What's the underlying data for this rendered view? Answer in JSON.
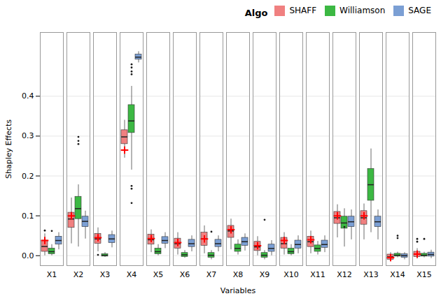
{
  "chart_data": {
    "type": "box",
    "xlabel": "Variables",
    "ylabel": "Shapley Effects",
    "categories": [
      "X1",
      "X2",
      "X3",
      "X4",
      "X5",
      "X6",
      "X7",
      "X8",
      "X9",
      "X10",
      "X11",
      "X12",
      "X13",
      "X14",
      "X15"
    ],
    "ylim": [
      -0.025,
      0.56
    ],
    "yticks": [
      {
        "value": 0.0,
        "label": "0.0"
      },
      0.1,
      0.2,
      0.3,
      0.4
    ],
    "grid": true,
    "legend": "upper right",
    "legend_title": "Algo",
    "mean_color": "#FF0000",
    "outlier_color": "#1a1a1a",
    "series": [
      {
        "name": "SHAFF",
        "color": "#F08080",
        "q1": [
          0.01,
          0.07,
          0.03,
          0.28,
          0.028,
          0.018,
          0.025,
          0.045,
          0.012,
          0.018,
          0.022,
          0.08,
          0.078,
          -0.01,
          -0.003
        ],
        "median": [
          0.023,
          0.092,
          0.042,
          0.298,
          0.04,
          0.03,
          0.042,
          0.062,
          0.022,
          0.03,
          0.035,
          0.095,
          0.095,
          -0.003,
          0.004
        ],
        "q3": [
          0.038,
          0.108,
          0.055,
          0.315,
          0.053,
          0.043,
          0.058,
          0.075,
          0.035,
          0.045,
          0.048,
          0.11,
          0.112,
          0.003,
          0.01
        ],
        "whislo": [
          0.0,
          0.03,
          0.01,
          0.245,
          0.008,
          0.002,
          0.005,
          0.015,
          0.0,
          0.002,
          0.005,
          0.045,
          0.04,
          -0.015,
          -0.008
        ],
        "whishi": [
          0.055,
          0.145,
          0.07,
          0.34,
          0.065,
          0.058,
          0.075,
          0.092,
          0.048,
          0.058,
          0.062,
          0.128,
          0.13,
          0.008,
          0.018
        ],
        "mean": [
          0.038,
          0.1,
          0.045,
          0.265,
          0.043,
          0.033,
          0.042,
          0.065,
          0.025,
          0.038,
          0.04,
          0.1,
          0.1,
          -0.005,
          0.004
        ],
        "fliers": [
          [
            0.063
          ],
          [],
          [
            0.002
          ],
          [],
          [],
          [],
          [],
          [],
          [],
          [],
          [],
          [],
          [],
          [],
          [
            0.035,
            0.042
          ]
        ]
      },
      {
        "name": "Williamson",
        "color": "#3CB843",
        "q1": [
          0.004,
          0.092,
          -0.002,
          0.308,
          0.004,
          -0.003,
          -0.005,
          0.01,
          -0.005,
          0.004,
          0.01,
          0.068,
          0.138,
          -0.002,
          -0.002
        ],
        "median": [
          0.01,
          0.118,
          0.001,
          0.338,
          0.01,
          0.002,
          0.001,
          0.018,
          0.001,
          0.01,
          0.018,
          0.082,
          0.178,
          0.001,
          0.001
        ],
        "q3": [
          0.018,
          0.148,
          0.004,
          0.378,
          0.018,
          0.007,
          0.007,
          0.028,
          0.007,
          0.018,
          0.026,
          0.098,
          0.218,
          0.005,
          0.005
        ],
        "whislo": [
          0.0,
          0.022,
          -0.004,
          0.215,
          0.0,
          -0.006,
          -0.01,
          0.002,
          -0.01,
          0.0,
          0.002,
          0.022,
          0.058,
          -0.005,
          -0.005
        ],
        "whishi": [
          0.028,
          0.178,
          0.008,
          0.425,
          0.028,
          0.013,
          0.013,
          0.04,
          0.013,
          0.028,
          0.036,
          0.118,
          0.268,
          0.009,
          0.009
        ],
        "fliers": [
          [
            0.062
          ],
          [
            0.28,
            0.288,
            0.298
          ],
          [],
          [
            0.455,
            0.462,
            0.472,
            0.48,
            0.175,
            0.168,
            0.132
          ],
          [],
          [],
          [
            0.06
          ],
          [],
          [
            0.09
          ],
          [],
          [],
          [
            0.072
          ],
          [],
          [
            0.044,
            0.05
          ],
          [
            0.042
          ]
        ]
      },
      {
        "name": "SAGE",
        "color": "#7B9FD4",
        "q1": [
          0.028,
          0.072,
          0.032,
          0.492,
          0.03,
          0.022,
          0.022,
          0.025,
          0.01,
          0.018,
          0.02,
          0.072,
          0.072,
          -0.005,
          -0.002
        ],
        "median": [
          0.038,
          0.086,
          0.042,
          0.498,
          0.038,
          0.03,
          0.03,
          0.035,
          0.018,
          0.028,
          0.028,
          0.085,
          0.085,
          0.0,
          0.003
        ],
        "q3": [
          0.048,
          0.098,
          0.052,
          0.505,
          0.047,
          0.04,
          0.04,
          0.045,
          0.028,
          0.038,
          0.038,
          0.098,
          0.098,
          0.004,
          0.008
        ],
        "whislo": [
          0.015,
          0.042,
          0.02,
          0.484,
          0.018,
          0.01,
          0.01,
          0.012,
          0.0,
          0.005,
          0.008,
          0.04,
          0.04,
          -0.01,
          -0.007
        ],
        "whishi": [
          0.058,
          0.112,
          0.062,
          0.512,
          0.058,
          0.05,
          0.05,
          0.055,
          0.038,
          0.05,
          0.05,
          0.115,
          0.115,
          0.008,
          0.014
        ],
        "fliers": [
          [],
          [],
          [],
          [],
          [],
          [],
          [],
          [],
          [],
          [],
          [],
          [],
          [],
          [],
          []
        ]
      }
    ]
  }
}
